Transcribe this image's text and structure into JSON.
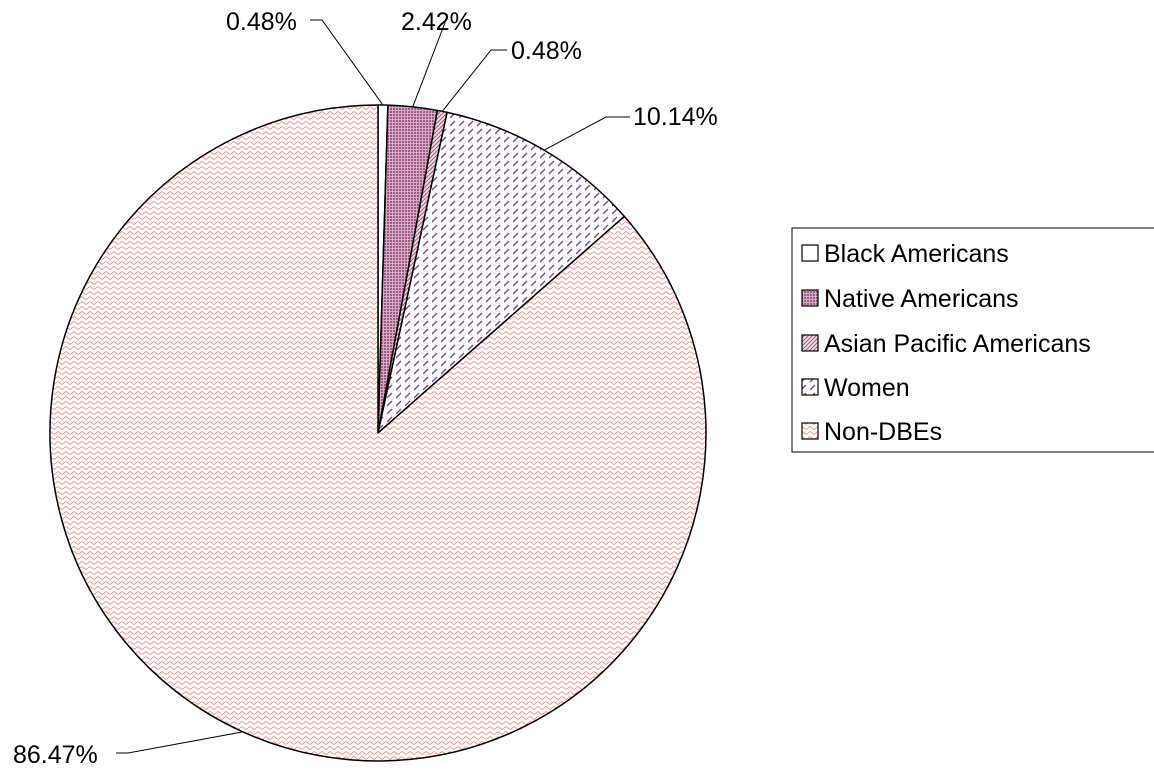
{
  "chart_data": {
    "type": "pie",
    "categories": [
      "Black Americans",
      "Native Americans",
      "Asian Pacific Americans",
      "Women",
      "Non-DBEs"
    ],
    "values": [
      0.48,
      2.42,
      0.48,
      10.14,
      86.47
    ],
    "labels": [
      "0.48%",
      "2.42%",
      "0.48%",
      "10.14%",
      "86.47%"
    ],
    "legend_position": "right",
    "colors": {
      "outline": "#000000",
      "native_fill": "#b07a9e",
      "asian_fill": "#c890b0",
      "women_stroke": "#7a4a8c",
      "nondbe_stroke": "#f09090"
    }
  }
}
